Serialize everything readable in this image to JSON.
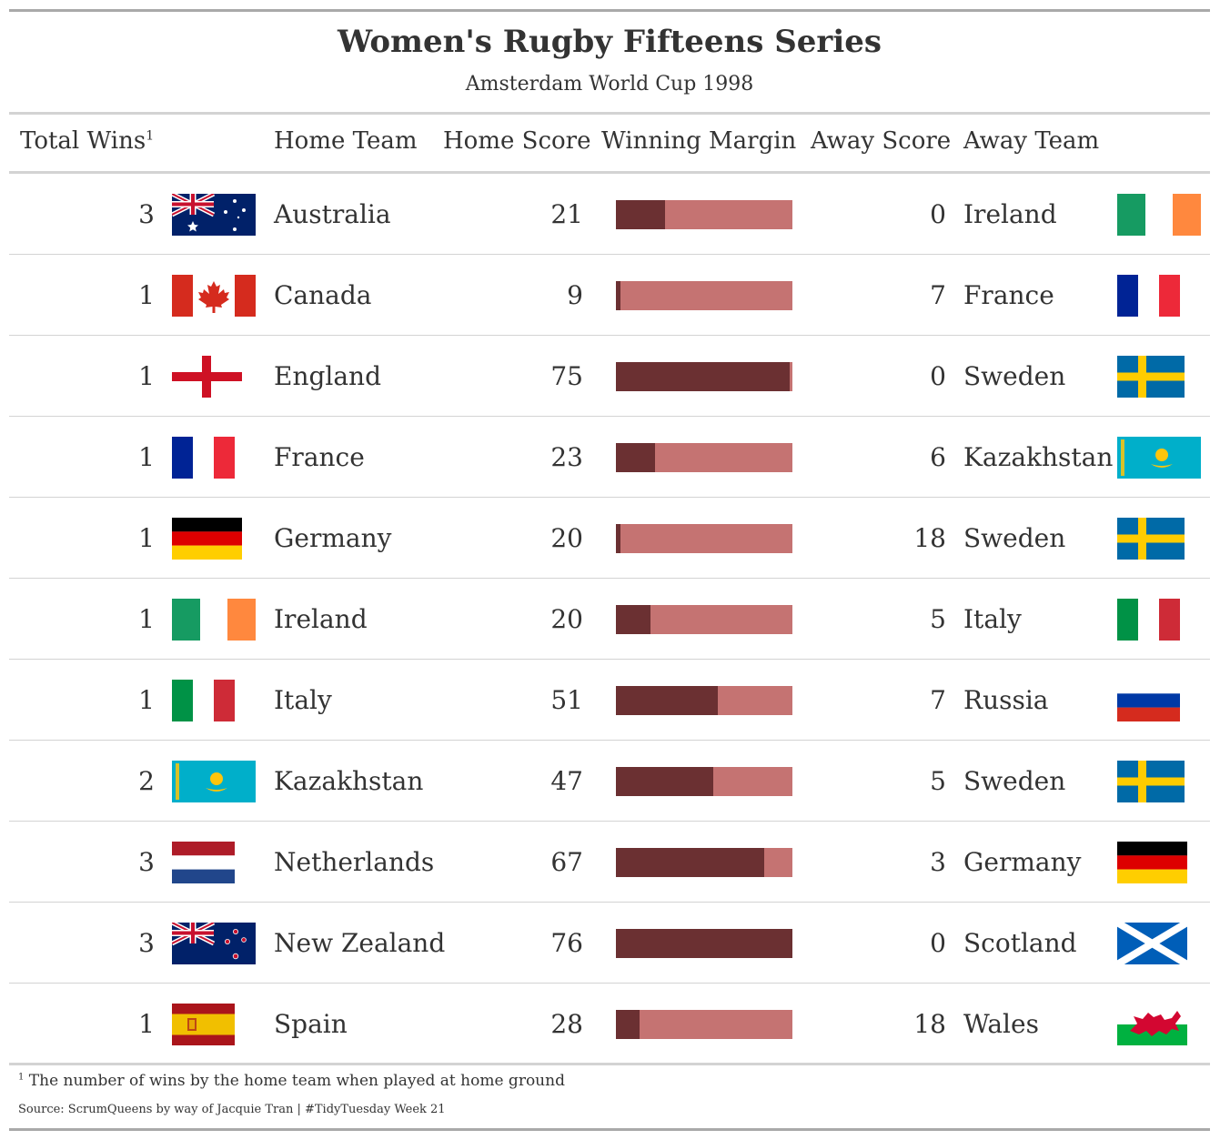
{
  "header": {
    "title": "Women's Rugby Fifteens Series",
    "subtitle": "Amsterdam World Cup 1998"
  },
  "columns": {
    "total_wins": "Total Wins",
    "total_wins_marker": "1",
    "home_team": "Home Team",
    "home_score": "Home Score",
    "winning_margin": "Winning Margin",
    "away_score": "Away Score",
    "away_team": "Away Team"
  },
  "colors": {
    "bar_margin": "#6b3032",
    "bar_background": "#c57372",
    "rule_outer": "#a9a9a9",
    "rule_inner": "#d3d3d3"
  },
  "rows": [
    {
      "total_wins": "3",
      "home_flag": "australia-flag-icon",
      "home_team": "Australia",
      "home_score": "21",
      "margin_fraction": 0.276,
      "away_score": "0",
      "away_team": "Ireland",
      "away_flag": "ireland-flag-icon"
    },
    {
      "total_wins": "1",
      "home_flag": "canada-flag-icon",
      "home_team": "Canada",
      "home_score": "9",
      "margin_fraction": 0.026,
      "away_score": "7",
      "away_team": "France",
      "away_flag": "france-flag-icon"
    },
    {
      "total_wins": "1",
      "home_flag": "england-flag-icon",
      "home_team": "England",
      "home_score": "75",
      "margin_fraction": 0.987,
      "away_score": "0",
      "away_team": "Sweden",
      "away_flag": "sweden-flag-icon"
    },
    {
      "total_wins": "1",
      "home_flag": "france-flag-icon",
      "home_team": "France",
      "home_score": "23",
      "margin_fraction": 0.224,
      "away_score": "6",
      "away_team": "Kazakhstan",
      "away_flag": "kazakhstan-flag-icon"
    },
    {
      "total_wins": "1",
      "home_flag": "germany-flag-icon",
      "home_team": "Germany",
      "home_score": "20",
      "margin_fraction": 0.026,
      "away_score": "18",
      "away_team": "Sweden",
      "away_flag": "sweden-flag-icon"
    },
    {
      "total_wins": "1",
      "home_flag": "ireland-flag-icon",
      "home_team": "Ireland",
      "home_score": "20",
      "margin_fraction": 0.197,
      "away_score": "5",
      "away_team": "Italy",
      "away_flag": "italy-flag-icon"
    },
    {
      "total_wins": "1",
      "home_flag": "italy-flag-icon",
      "home_team": "Italy",
      "home_score": "51",
      "margin_fraction": 0.579,
      "away_score": "7",
      "away_team": "Russia",
      "away_flag": "russia-flag-icon"
    },
    {
      "total_wins": "2",
      "home_flag": "kazakhstan-flag-icon",
      "home_team": "Kazakhstan",
      "home_score": "47",
      "margin_fraction": 0.553,
      "away_score": "5",
      "away_team": "Sweden",
      "away_flag": "sweden-flag-icon"
    },
    {
      "total_wins": "3",
      "home_flag": "netherlands-flag-icon",
      "home_team": "Netherlands",
      "home_score": "67",
      "margin_fraction": 0.842,
      "away_score": "3",
      "away_team": "Germany",
      "away_flag": "germany-flag-icon"
    },
    {
      "total_wins": "3",
      "home_flag": "new-zealand-flag-icon",
      "home_team": "New Zealand",
      "home_score": "76",
      "margin_fraction": 1.0,
      "away_score": "0",
      "away_team": "Scotland",
      "away_flag": "scotland-flag-icon"
    },
    {
      "total_wins": "1",
      "home_flag": "spain-flag-icon",
      "home_team": "Spain",
      "home_score": "28",
      "margin_fraction": 0.132,
      "away_score": "18",
      "away_team": "Wales",
      "away_flag": "wales-flag-icon"
    }
  ],
  "footer": {
    "footnote_marker": "1",
    "footnote": "The number of wins by the home team when played at home ground",
    "source": "Source: ScrumQueens by way of Jacquie Tran | #TidyTuesday Week 21"
  }
}
